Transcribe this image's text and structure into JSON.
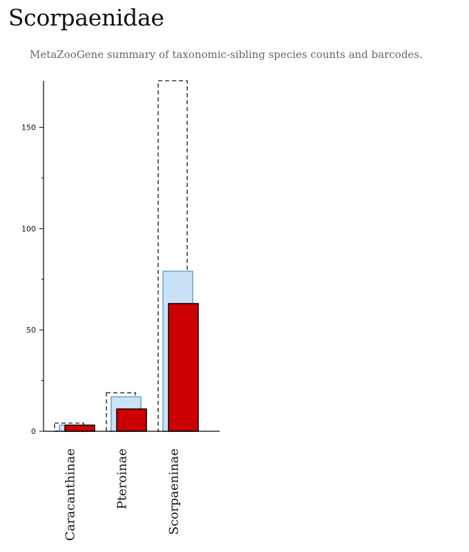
{
  "header": {
    "title": "Scorpaenidae",
    "subtitle": "MetaZooGene summary of taxonomic-sibling species counts and barcodes."
  },
  "colors": {
    "total_outline": "#555555",
    "species_fill": "#c9e2f8",
    "species_stroke": "#6a9fd0",
    "barcoded_fill": "#cc0000",
    "barcoded_stroke": "#1a0000",
    "axis": "#000000"
  },
  "chart_data": {
    "type": "bar",
    "categories": [
      "Caracanthinae",
      "Pteroinae",
      "Scorpaeninae"
    ],
    "series": [
      {
        "key": "total",
        "values": [
          4,
          19,
          173
        ]
      },
      {
        "key": "species",
        "values": [
          3,
          17,
          79
        ]
      },
      {
        "key": "barcoded",
        "values": [
          3,
          11,
          63
        ]
      }
    ],
    "ylim": [
      0,
      173
    ],
    "yticks": [
      0,
      50,
      100,
      150
    ],
    "ytick_labels": [
      "0",
      "50",
      "100",
      "150"
    ],
    "minor_step": 25,
    "grid": false
  }
}
